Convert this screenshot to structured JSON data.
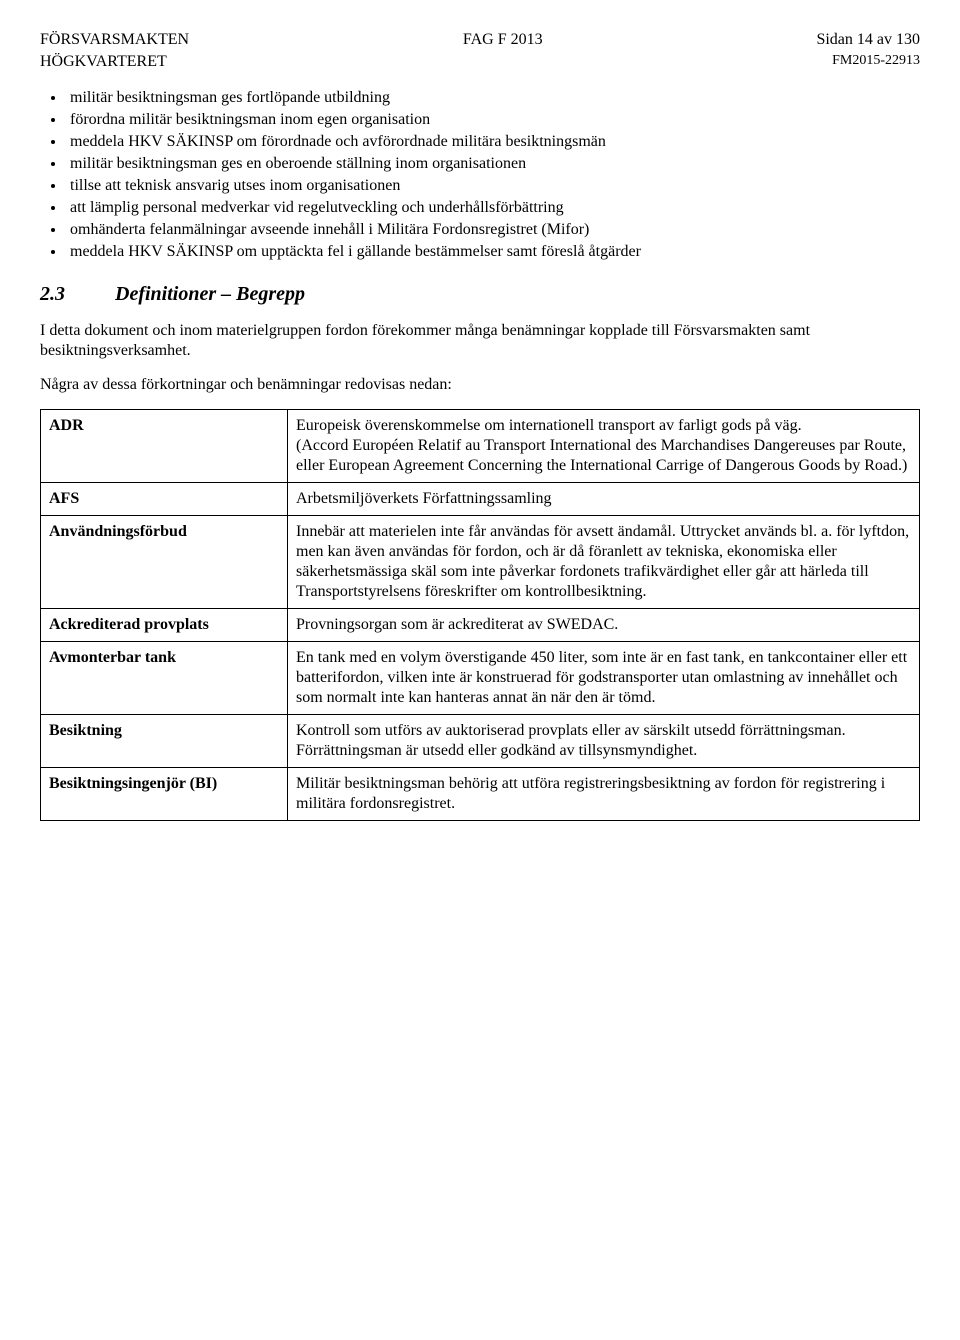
{
  "header": {
    "org": "FÖRSVARSMAKTEN",
    "doc": "FAG F 2013",
    "page": "Sidan 14 av 130",
    "suborg": "HÖGKVARTERET",
    "ref": "FM2015-22913"
  },
  "bullets": [
    "militär besiktningsman ges fortlöpande utbildning",
    "förordna militär besiktningsman inom egen organisation",
    "meddela HKV SÄKINSP om förordnade och avförordnade militära besiktningsmän",
    "militär besiktningsman ges en oberoende ställning inom organisationen",
    "tillse att teknisk ansvarig utses inom organisationen",
    "att lämplig personal medverkar vid regelutveckling och underhållsförbättring",
    "omhänderta felanmälningar avseende innehåll i Militära Fordonsregistret (Mifor)",
    "meddela HKV SÄKINSP om upptäckta fel i gällande bestämmelser samt föreslå åtgärder"
  ],
  "section": {
    "num": "2.3",
    "title": "Definitioner – Begrepp"
  },
  "paragraphs": {
    "p1": "I detta dokument och inom materielgruppen fordon förekommer många benämningar kopplade till Försvarsmakten samt besiktningsverksamhet.",
    "p2": "Några av dessa förkortningar och benämningar redovisas nedan:"
  },
  "definitions": [
    {
      "term": "ADR",
      "text": "Europeisk överenskommelse om internationell transport av farligt gods på väg.\n(Accord Européen Relatif au Transport International des Marchandises Dangereuses par Route, eller European Agreement Concerning the International Carrige of Dangerous Goods by Road.)"
    },
    {
      "term": "AFS",
      "text": "Arbetsmiljöverkets Författningssamling"
    },
    {
      "term": "Användningsförbud",
      "text": "Innebär att materielen inte får användas för avsett ändamål. Uttrycket används bl. a. för lyftdon, men kan även användas för fordon, och är då föranlett av tekniska, ekonomiska eller säkerhetsmässiga skäl som inte påverkar fordonets trafikvärdighet eller går att härleda till Transportstyrelsens föreskrifter om kontrollbesiktning."
    },
    {
      "term": "Ackrediterad provplats",
      "text": "Provningsorgan som är ackrediterat av SWEDAC."
    },
    {
      "term": "Avmonterbar tank",
      "text": "En tank med en volym överstigande 450 liter, som inte är en fast tank, en tankcontainer eller ett batterifordon, vilken inte är konstruerad för godstransporter utan omlastning av innehållet och som normalt inte kan hanteras annat än när den är tömd."
    },
    {
      "term": "Besiktning",
      "text": "Kontroll som utförs av auktoriserad provplats eller av särskilt utsedd förrättningsman. Förrättningsman är utsedd eller godkänd av tillsynsmyndighet."
    },
    {
      "term": "Besiktningsingenjör (BI)",
      "text": "Militär besiktningsman behörig att utföra registreringsbesiktning av fordon för registrering i militära fordonsregistret."
    }
  ]
}
